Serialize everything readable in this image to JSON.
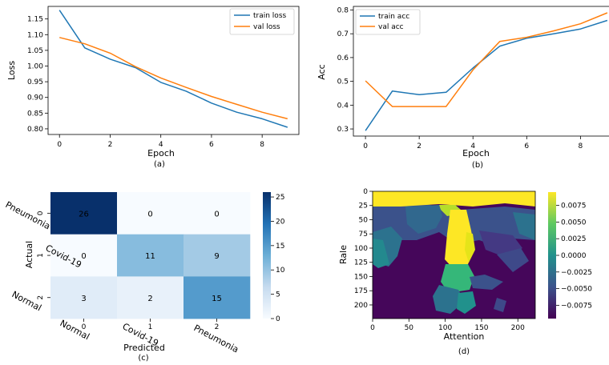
{
  "chart_data": [
    {
      "id": "a",
      "type": "line",
      "caption": "(a)",
      "xlabel": "Epoch",
      "ylabel": "Loss",
      "xlim": [
        -0.45,
        9.45
      ],
      "ylim": [
        0.782,
        1.19
      ],
      "xticks": [
        0,
        2,
        4,
        6,
        8
      ],
      "yticks": [
        0.8,
        0.85,
        0.9,
        0.95,
        1.0,
        1.05,
        1.1,
        1.15
      ],
      "legend_position": "top-right",
      "x": [
        0,
        1,
        2,
        3,
        4,
        5,
        6,
        7,
        8,
        9
      ],
      "series": [
        {
          "name": "train loss",
          "color": "#1f77b4",
          "values": [
            1.178,
            1.058,
            1.022,
            0.995,
            0.948,
            0.92,
            0.882,
            0.853,
            0.832,
            0.805
          ]
        },
        {
          "name": "val loss",
          "color": "#ff7f0e",
          "values": [
            1.091,
            1.071,
            1.041,
            0.998,
            0.962,
            0.932,
            0.903,
            0.878,
            0.853,
            0.832
          ]
        }
      ]
    },
    {
      "id": "b",
      "type": "line",
      "caption": "(b)",
      "xlabel": "Epoch",
      "ylabel": "Acc",
      "xlim": [
        -0.45,
        9.45
      ],
      "ylim": [
        0.27,
        0.815
      ],
      "xticks": [
        0,
        2,
        4,
        6,
        8
      ],
      "yticks": [
        0.3,
        0.4,
        0.5,
        0.6,
        0.7,
        0.8
      ],
      "legend_position": "top-left",
      "x": [
        0,
        1,
        2,
        3,
        4,
        5,
        6,
        7,
        8,
        9
      ],
      "series": [
        {
          "name": "train acc",
          "color": "#1f77b4",
          "values": [
            0.293,
            0.459,
            0.444,
            0.454,
            0.556,
            0.648,
            0.681,
            0.7,
            0.72,
            0.756
          ]
        },
        {
          "name": "val acc",
          "color": "#ff7f0e",
          "values": [
            0.502,
            0.394,
            0.394,
            0.394,
            0.548,
            0.668,
            0.685,
            0.712,
            0.742,
            0.788
          ]
        }
      ]
    },
    {
      "id": "c",
      "type": "heatmap",
      "caption": "(c)",
      "xlabel": "Predicted",
      "ylabel": "Actual",
      "xticks": [
        "0",
        "1",
        "2"
      ],
      "yticks": [
        "0",
        "1",
        "2"
      ],
      "x_class_labels": [
        "Normal",
        "Covid-19",
        "Pneumonia"
      ],
      "y_class_labels": [
        "Pneumonia",
        "Covid-19",
        "Normal"
      ],
      "matrix": [
        [
          26,
          0,
          0
        ],
        [
          0,
          11,
          9
        ],
        [
          3,
          2,
          15
        ]
      ],
      "vmin": 0,
      "vmax": 26,
      "colorbar_ticks": [
        0,
        5,
        10,
        15,
        20,
        25
      ],
      "colormap": "Blues"
    },
    {
      "id": "d",
      "type": "heatmap",
      "caption": "(d)",
      "xlabel": "Attention",
      "ylabel": "Rale",
      "xlim": [
        0,
        224
      ],
      "ylim": [
        0,
        224
      ],
      "xticks": [
        0,
        50,
        100,
        150,
        200
      ],
      "yticks": [
        0,
        25,
        50,
        75,
        100,
        125,
        150,
        175,
        200
      ],
      "colorbar_ticks": [
        "0.0075",
        "0.0050",
        "0.0025",
        "0.0000",
        "−0.0025",
        "−0.0050",
        "−0.0075"
      ],
      "colorbar_values": [
        0.0075,
        0.005,
        0.0025,
        0,
        -0.0025,
        -0.005,
        -0.0075
      ],
      "vmin": -0.0095,
      "vmax": 0.0095,
      "colormap": "viridis"
    }
  ]
}
